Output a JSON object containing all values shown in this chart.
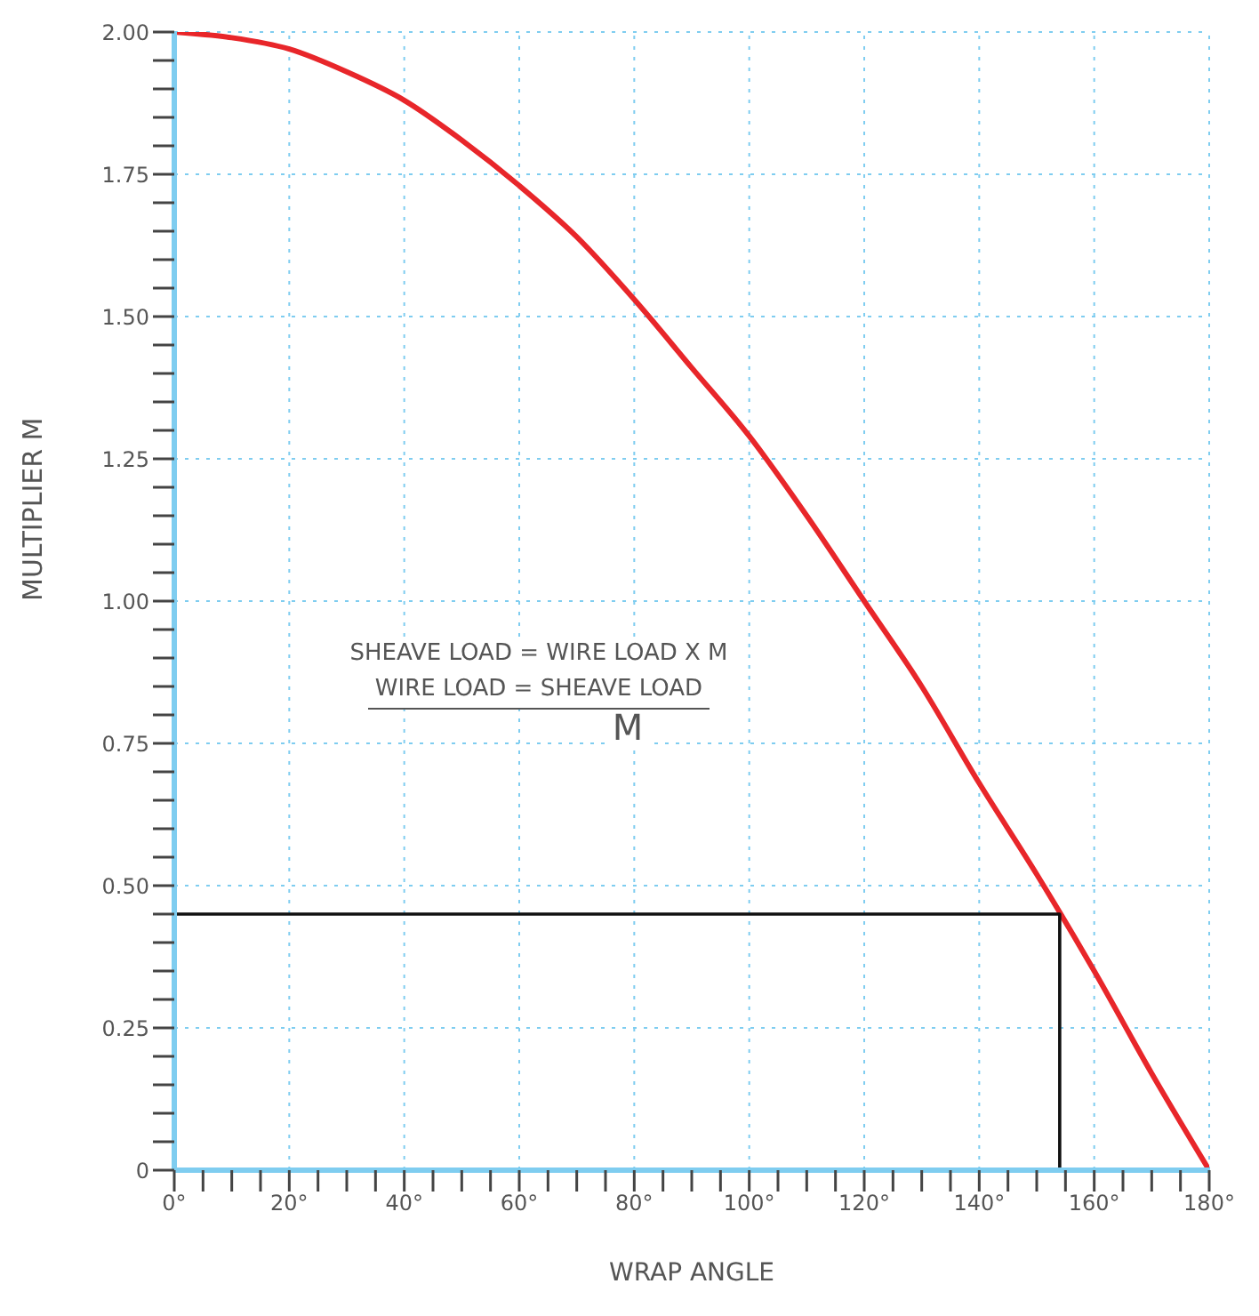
{
  "chart_data": {
    "type": "line",
    "xlabel": "WRAP ANGLE",
    "ylabel": "MULTIPLIER M",
    "annotations": [
      "SHEAVE LOAD = WIRE LOAD X M",
      "WIRE LOAD = SHEAVE LOAD",
      "M"
    ],
    "series": [
      {
        "color": "#e8262a",
        "x": [
          0,
          10,
          20,
          30,
          40,
          50,
          60,
          70,
          80,
          90,
          100,
          110,
          120,
          130,
          140,
          150,
          160,
          170,
          180
        ],
        "values": [
          2.0,
          1.99,
          1.97,
          1.93,
          1.88,
          1.81,
          1.73,
          1.64,
          1.53,
          1.41,
          1.29,
          1.15,
          1.0,
          0.85,
          0.68,
          0.52,
          0.35,
          0.17,
          0
        ]
      },
      {
        "color": "#111111",
        "x": [
          0,
          154,
          154
        ],
        "values": [
          0.45,
          0.45,
          0
        ]
      }
    ],
    "xlim": [
      0,
      180
    ],
    "ylim": [
      0,
      2
    ],
    "xticks": [
      {
        "value": 0,
        "label": "0°"
      },
      {
        "value": 5,
        "label": null
      },
      {
        "value": 10,
        "label": null
      },
      {
        "value": 15,
        "label": null
      },
      {
        "value": 20,
        "label": "20°"
      },
      {
        "value": 25,
        "label": null
      },
      {
        "value": 30,
        "label": null
      },
      {
        "value": 35,
        "label": null
      },
      {
        "value": 40,
        "label": "40°"
      },
      {
        "value": 45,
        "label": null
      },
      {
        "value": 50,
        "label": null
      },
      {
        "value": 55,
        "label": null
      },
      {
        "value": 60,
        "label": "60°"
      },
      {
        "value": 65,
        "label": null
      },
      {
        "value": 70,
        "label": null
      },
      {
        "value": 75,
        "label": null
      },
      {
        "value": 80,
        "label": "80°"
      },
      {
        "value": 85,
        "label": null
      },
      {
        "value": 90,
        "label": null
      },
      {
        "value": 95,
        "label": null
      },
      {
        "value": 100,
        "label": "100°"
      },
      {
        "value": 105,
        "label": null
      },
      {
        "value": 110,
        "label": null
      },
      {
        "value": 115,
        "label": null
      },
      {
        "value": 120,
        "label": "120°"
      },
      {
        "value": 125,
        "label": null
      },
      {
        "value": 130,
        "label": null
      },
      {
        "value": 135,
        "label": null
      },
      {
        "value": 140,
        "label": "140°"
      },
      {
        "value": 145,
        "label": null
      },
      {
        "value": 150,
        "label": null
      },
      {
        "value": 155,
        "label": null
      },
      {
        "value": 160,
        "label": "160°"
      },
      {
        "value": 165,
        "label": null
      },
      {
        "value": 170,
        "label": null
      },
      {
        "value": 175,
        "label": null
      },
      {
        "value": 180,
        "label": "180°"
      }
    ],
    "yticks": [
      0,
      {
        "value": 0.05,
        "label": null
      },
      {
        "value": 0.1,
        "label": null
      },
      {
        "value": 0.15,
        "label": null
      },
      {
        "value": 0.2,
        "label": null
      },
      {
        "value": 0.25,
        "label": "0.25"
      },
      {
        "value": 0.3,
        "label": null
      },
      {
        "value": 0.35,
        "label": null
      },
      {
        "value": 0.4,
        "label": null
      },
      {
        "value": 0.45,
        "label": null
      },
      {
        "value": 0.5,
        "label": "0.50"
      },
      {
        "value": 0.55,
        "label": null
      },
      {
        "value": 0.6,
        "label": null
      },
      {
        "value": 0.65,
        "label": null
      },
      {
        "value": 0.7,
        "label": null
      },
      {
        "value": 0.75,
        "label": "0.75"
      },
      {
        "value": 0.8,
        "label": null
      },
      {
        "value": 0.85,
        "label": null
      },
      {
        "value": 0.9,
        "label": null
      },
      {
        "value": 0.95,
        "label": null
      },
      {
        "value": 1,
        "label": "1.00"
      },
      {
        "value": 1.05,
        "label": null
      },
      {
        "value": 1.1,
        "label": null
      },
      {
        "value": 1.15,
        "label": null
      },
      {
        "value": 1.2,
        "label": null
      },
      {
        "value": 1.25,
        "label": "1.25"
      },
      {
        "value": 1.3,
        "label": null
      },
      {
        "value": 1.35,
        "label": null
      },
      {
        "value": 1.4,
        "label": null
      },
      {
        "value": 1.45,
        "label": null
      },
      {
        "value": 1.5,
        "label": "1.50"
      },
      {
        "value": 1.55,
        "label": null
      },
      {
        "value": 1.6,
        "label": null
      },
      {
        "value": 1.65,
        "label": null
      },
      {
        "value": 1.7,
        "label": null
      },
      {
        "value": 1.75,
        "label": "1.75"
      },
      {
        "value": 1.8,
        "label": null
      },
      {
        "value": 1.85,
        "label": null
      },
      {
        "value": 1.9,
        "label": null
      },
      {
        "value": 1.95,
        "label": null
      },
      {
        "value": 2,
        "label": "2.00"
      }
    ],
    "grid": true,
    "marker": "none",
    "line_style": "solid"
  }
}
